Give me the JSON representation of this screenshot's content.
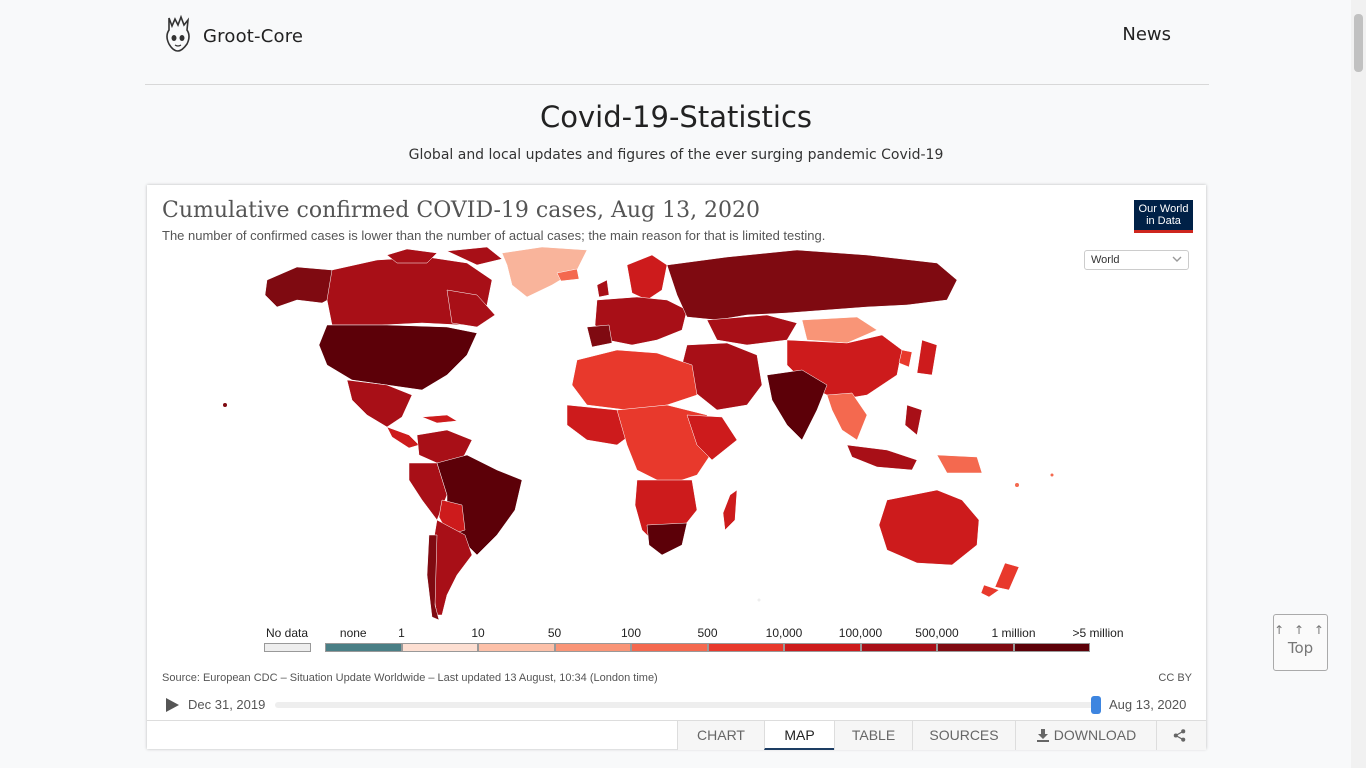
{
  "nav": {
    "brand": "Groot-Core",
    "brand_icon": "groot-logo-icon",
    "news_link": "News"
  },
  "header": {
    "title": "Covid-19-Statistics",
    "subtitle": "Global and local updates and figures of the ever surging pandemic Covid-19"
  },
  "chart": {
    "title": "Cumulative confirmed COVID-19 cases, Aug 13, 2020",
    "subtitle": "The number of confirmed cases is lower than the number of actual cases; the main reason for that is limited testing.",
    "logo_text": "Our World in Data",
    "region_select": "World",
    "source": "Source: European CDC – Situation Update Worldwide – Last updated 13 August, 10:34 (London time)",
    "license": "CC BY",
    "timeline": {
      "start": "Dec 31, 2019",
      "end": "Aug 13, 2020",
      "position": 1.0
    },
    "legend": {
      "no_data": "No data",
      "no_data_color": "#eeeeee",
      "bins": [
        {
          "label": "none",
          "color": "#4a7f86"
        },
        {
          "label": "1",
          "color": "#fddfd2"
        },
        {
          "label": "10",
          "color": "#fcc0a8"
        },
        {
          "label": "50",
          "color": "#f99577"
        },
        {
          "label": "100",
          "color": "#f4694f"
        },
        {
          "label": "500",
          "color": "#e8392c"
        },
        {
          "label": "10,000",
          "color": "#cd1b1c"
        },
        {
          "label": "100,000",
          "color": "#a80f17"
        },
        {
          "label": "500,000",
          "color": "#7f0a11"
        },
        {
          "label": "1 million",
          "color": "#5c0008"
        }
      ],
      "final_label": ">5 million"
    },
    "tabs": [
      "CHART",
      "MAP",
      "TABLE",
      "SOURCES",
      "DOWNLOAD"
    ],
    "active_tab": "MAP"
  },
  "back_to_top": {
    "arrows": "↑ ↑ ↑",
    "label": "Top"
  }
}
